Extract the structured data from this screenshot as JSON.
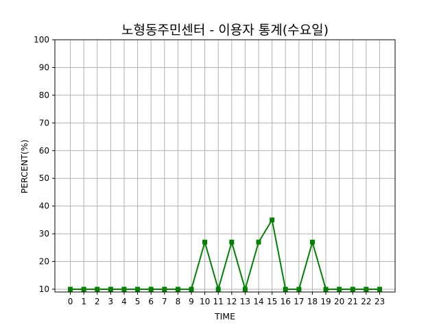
{
  "chart_data": {
    "type": "line",
    "title": "노형동주민센터 - 이용자 통계(수요일)",
    "xlabel": "TIME",
    "ylabel": "PERCENT(%)",
    "x": [
      0,
      1,
      2,
      3,
      4,
      5,
      6,
      7,
      8,
      9,
      10,
      11,
      12,
      13,
      14,
      15,
      16,
      17,
      18,
      19,
      20,
      21,
      22,
      23
    ],
    "x_ticks": [
      "0",
      "1",
      "2",
      "3",
      "4",
      "5",
      "6",
      "7",
      "8",
      "9",
      "10",
      "11",
      "12",
      "13",
      "14",
      "15",
      "16",
      "17",
      "18",
      "19",
      "20",
      "21",
      "22",
      "23"
    ],
    "y_ticks": [
      "10",
      "20",
      "30",
      "40",
      "50",
      "60",
      "70",
      "80",
      "90",
      "100"
    ],
    "xlim": [
      -1.15,
      24.15
    ],
    "ylim": [
      9,
      100
    ],
    "grid": true,
    "series": [
      {
        "values": [
          10,
          10,
          10,
          10,
          10,
          10,
          10,
          10,
          10,
          10,
          27,
          10,
          27,
          10,
          27,
          35,
          10,
          10,
          27,
          10,
          10,
          10,
          10,
          10
        ],
        "color": "#008000",
        "marker": "square"
      }
    ]
  }
}
